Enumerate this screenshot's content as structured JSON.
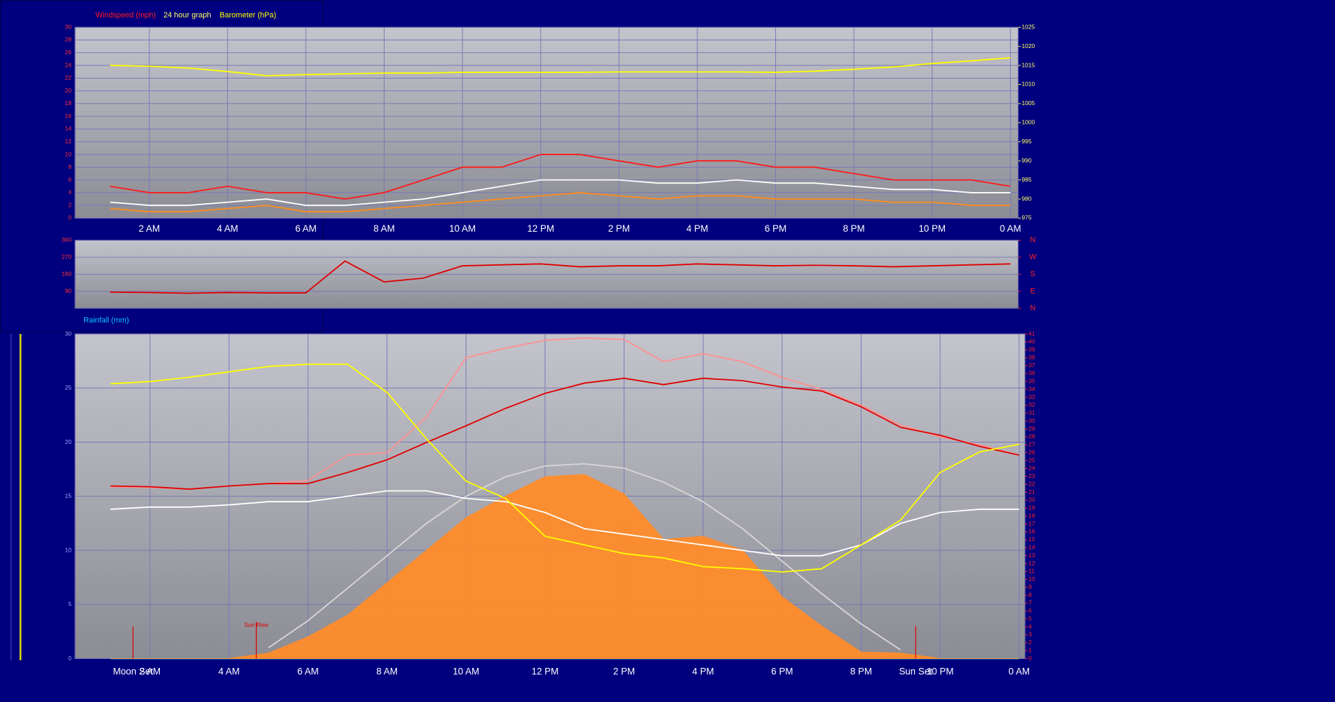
{
  "chart_data": [
    {
      "type": "line",
      "title": "24 hour graph",
      "x": [
        1,
        2,
        3,
        4,
        5,
        6,
        7,
        8,
        9,
        10,
        11,
        12,
        13,
        14,
        15,
        16,
        17,
        18,
        19,
        20,
        21,
        22,
        23,
        24
      ],
      "series": [
        {
          "name": "Windspeed (mph)",
          "color": "#ff1a1a",
          "values": [
            5,
            4,
            4,
            5,
            4,
            4,
            3,
            4,
            6,
            8,
            8,
            10,
            10,
            9,
            8,
            9,
            9,
            8,
            8,
            7,
            6,
            6,
            6,
            5
          ]
        },
        {
          "color": "#ff8c1a",
          "values": [
            1.5,
            1,
            1,
            1.5,
            2,
            1,
            1,
            1.5,
            2,
            2.5,
            3,
            3.5,
            4,
            3.5,
            3,
            3.5,
            3.5,
            3,
            3,
            3,
            2.5,
            2.5,
            2,
            2
          ]
        },
        {
          "color": "#ffffff",
          "values": [
            2.5,
            2,
            2,
            2.5,
            3,
            2,
            2,
            2.5,
            3,
            4,
            5,
            6,
            6,
            6,
            5.5,
            5.5,
            6,
            5.5,
            5.5,
            5,
            4.5,
            4.5,
            4,
            4
          ]
        },
        {
          "name": "Barometer (hPa)",
          "color": "#ffff00",
          "axis": "y2",
          "values": [
            1015,
            1014.8,
            1014.3,
            1013.4,
            1012.3,
            1012.6,
            1012.8,
            1013,
            1013,
            1013.2,
            1013.2,
            1013.2,
            1013.2,
            1013.3,
            1013.3,
            1013.3,
            1013.3,
            1013.2,
            1013.5,
            1014,
            1014.6,
            1015.5,
            1016.2,
            1017
          ]
        }
      ],
      "xlim": [
        0.1,
        24.2
      ],
      "xticks": [
        {
          "value": 2,
          "label": "2 AM"
        },
        {
          "value": 4,
          "label": "4 AM"
        },
        {
          "value": 6,
          "label": "6 AM"
        },
        {
          "value": 8,
          "label": "8 AM"
        },
        {
          "value": 10,
          "label": "10 AM"
        },
        {
          "value": 12,
          "label": "12 PM"
        },
        {
          "value": 14,
          "label": "2 PM"
        },
        {
          "value": 16,
          "label": "4 PM"
        },
        {
          "value": 18,
          "label": "6 PM"
        },
        {
          "value": 20,
          "label": "8 PM"
        },
        {
          "value": 22,
          "label": "10 PM"
        },
        {
          "value": 24,
          "label": "0 AM"
        }
      ],
      "ylim": [
        0,
        30
      ],
      "yticks": [
        0,
        2,
        4,
        6,
        8,
        10,
        12,
        14,
        16,
        18,
        20,
        22,
        24,
        26,
        28,
        30
      ],
      "y2lim": [
        975,
        1025
      ],
      "y2ticks": [
        975,
        980,
        985,
        990,
        995,
        1000,
        1005,
        1010,
        1015,
        1020,
        1025
      ],
      "grid": true
    },
    {
      "type": "line",
      "x": [
        1,
        2,
        3,
        4,
        5,
        6,
        7,
        8,
        9,
        10,
        11,
        12,
        13,
        14,
        15,
        16,
        17,
        18,
        19,
        20,
        21,
        22,
        23,
        24
      ],
      "series": [
        {
          "color": "#e00000",
          "values": [
            86,
            84,
            80,
            84,
            82,
            82,
            250,
            140,
            160,
            225,
            230,
            235,
            220,
            225,
            225,
            235,
            230,
            225,
            228,
            225,
            220,
            225,
            230,
            235
          ]
        }
      ],
      "xlim": [
        0.1,
        24.2
      ],
      "ylim": [
        0,
        360
      ],
      "yticks": [
        90,
        180,
        270,
        360
      ],
      "y2lim": [
        0,
        360
      ],
      "y2ticks": [
        {
          "value": 0,
          "label": "N"
        },
        {
          "value": 90,
          "label": "E"
        },
        {
          "value": 180,
          "label": "S"
        },
        {
          "value": 270,
          "label": "W"
        },
        {
          "value": 360,
          "label": "N"
        }
      ],
      "grid": true
    },
    {
      "type": "line",
      "x": [
        1,
        2,
        3,
        4,
        5,
        6,
        7,
        8,
        9,
        10,
        11,
        12,
        13,
        14,
        15,
        16,
        17,
        18,
        19,
        20,
        21,
        22,
        23,
        24
      ],
      "series": [
        {
          "name": "Rainfall (mm)",
          "color": "#00c8ff",
          "values": [
            0,
            0,
            0,
            0,
            0,
            0,
            0,
            0,
            0,
            0,
            0,
            0,
            0,
            0,
            0,
            0,
            0,
            0,
            0,
            0,
            0,
            0,
            0,
            0
          ]
        },
        {
          "color": "#ff8c2a",
          "type": "area",
          "values": [
            0,
            0,
            0,
            0,
            0.5,
            2,
            4,
            7,
            10,
            13,
            15,
            16.8,
            17,
            15.2,
            11,
            11.3,
            10,
            5.7,
            3,
            0.6,
            0.5,
            0,
            0,
            0
          ]
        },
        {
          "color": "#d8d8d8",
          "values": [
            null,
            null,
            null,
            null,
            1,
            3.5,
            6.5,
            9.5,
            12.5,
            15,
            16.8,
            17.8,
            18,
            17.6,
            16.3,
            14.5,
            12,
            9,
            6,
            3.2,
            0.8,
            null,
            null,
            null
          ]
        },
        {
          "color": "#ff9090",
          "axis": "y2",
          "values": [
            21.7,
            21.6,
            21.4,
            21.8,
            22.1,
            22.5,
            25.7,
            26,
            30.5,
            38,
            39.2,
            40.2,
            40.5,
            40.3,
            37.5,
            38.5,
            37.5,
            35.5,
            34,
            32,
            29.5,
            28,
            27,
            25.7
          ]
        },
        {
          "color": "#e00000",
          "axis": "y2",
          "values": [
            21.8,
            21.7,
            21.4,
            21.8,
            22.1,
            22.1,
            23.5,
            25.1,
            27.3,
            29.4,
            31.6,
            33.5,
            34.8,
            35.4,
            34.6,
            35.4,
            35.1,
            34.3,
            33.8,
            31.8,
            29.2,
            28.2,
            26.8,
            25.7
          ]
        },
        {
          "color": "#ffffff",
          "values": [
            13.8,
            14,
            14,
            14.2,
            14.5,
            14.5,
            15,
            15.5,
            15.5,
            14.8,
            14.5,
            13.5,
            12,
            11.5,
            11,
            10.5,
            10,
            9.5,
            9.5,
            10.5,
            12.5,
            13.5,
            13.8,
            13.8
          ]
        },
        {
          "color": "#ffff00",
          "values": [
            25.4,
            25.6,
            26,
            26.5,
            27,
            27.2,
            27.2,
            24.6,
            20.3,
            16.4,
            14.8,
            11.3,
            10.5,
            9.7,
            9.3,
            8.5,
            8.3,
            8,
            8.3,
            10.5,
            12.8,
            17.2,
            19.1,
            19.8
          ]
        }
      ],
      "annotations": [
        {
          "text": "Moon Set",
          "x": 1.57,
          "label_position": "below"
        },
        {
          "text": "Sun Rise",
          "x": 4.69,
          "label_position": "inside"
        },
        {
          "text": "Sun Set",
          "x": 21.38,
          "label_position": "below"
        }
      ],
      "xlim": [
        0.1,
        24.15
      ],
      "xticks": [
        {
          "value": 2,
          "label": "2 AM"
        },
        {
          "value": 4,
          "label": "4 AM"
        },
        {
          "value": 6,
          "label": "6 AM"
        },
        {
          "value": 8,
          "label": "8 AM"
        },
        {
          "value": 10,
          "label": "10 AM"
        },
        {
          "value": 12,
          "label": "12 PM"
        },
        {
          "value": 14,
          "label": "2 PM"
        },
        {
          "value": 16,
          "label": "4 PM"
        },
        {
          "value": 18,
          "label": "6 PM"
        },
        {
          "value": 20,
          "label": "8 PM"
        },
        {
          "value": 22,
          "label": "10 PM"
        },
        {
          "value": 24,
          "label": "0 AM"
        }
      ],
      "ylim": [
        0,
        30
      ],
      "yticks": [
        0,
        5,
        10,
        15,
        20,
        25,
        30
      ],
      "y2lim": [
        0,
        41
      ],
      "y2ticks": [
        0,
        1,
        2,
        3,
        4,
        5,
        6,
        7,
        8,
        9,
        10,
        11,
        12,
        13,
        14,
        15,
        16,
        17,
        18,
        19,
        20,
        21,
        22,
        23,
        24,
        25,
        26,
        27,
        28,
        29,
        30,
        31,
        32,
        33,
        34,
        35,
        36,
        37,
        38,
        39,
        40,
        41
      ],
      "grid": true
    }
  ]
}
